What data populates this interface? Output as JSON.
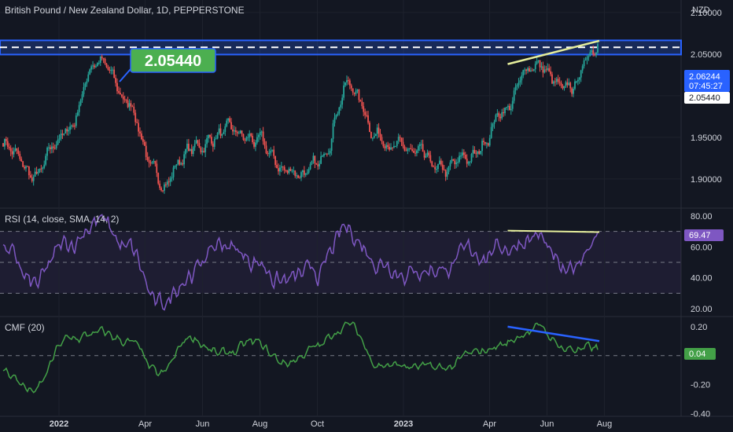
{
  "chart_title": "British Pound / New Zealand Dollar, 1D, PEPPERSTONE",
  "currency": "NZD",
  "colors": {
    "background": "#131722",
    "up": "#26a69a",
    "down": "#ef5350",
    "rsi": "#7e57c2",
    "cmf": "#43a047",
    "level_box": "#2962ff",
    "callout": "#4caf50",
    "trendline": "#e6ee9c"
  },
  "price_axis": {
    "ticks": [
      "2.10000",
      "2.05000",
      "2.00000",
      "1.95000",
      "1.90000"
    ],
    "last_price": "2.06244",
    "countdown": "07:45:27",
    "level_label": "2.05440"
  },
  "callout": {
    "value": "2.05440"
  },
  "time_axis": [
    "2022",
    "Apr",
    "Jun",
    "Aug",
    "Oct",
    "2023",
    "Apr",
    "Jun",
    "Aug"
  ],
  "rsi": {
    "title": "RSI (14, close, SMA, 14, 2)",
    "ticks": [
      "80.00",
      "60.00",
      "40.00",
      "20.00"
    ],
    "last_value": "69.47",
    "bands": [
      30,
      50,
      70
    ]
  },
  "cmf": {
    "title": "CMF (20)",
    "ticks": [
      "0.20",
      "0.00",
      "-0.20",
      "-0.40"
    ],
    "last_value": "0.04"
  },
  "chart_data": [
    {
      "type": "candlestick",
      "title": "British Pound / New Zealand Dollar, 1D, PEPPERSTONE",
      "ylabel": "NZD",
      "ylim": [
        1.865,
        2.115
      ],
      "x": [
        "2021-11",
        "2021-12",
        "2022-01",
        "2022-02",
        "2022-03",
        "2022-04",
        "2022-05",
        "2022-06",
        "2022-07",
        "2022-08",
        "2022-09",
        "2022-10",
        "2022-11",
        "2022-12",
        "2023-01",
        "2023-02",
        "2023-03",
        "2023-04",
        "2023-05",
        "2023-06"
      ],
      "close": [
        1.945,
        1.9,
        1.955,
        2.045,
        1.99,
        1.895,
        1.935,
        1.955,
        1.945,
        1.91,
        1.91,
        2.015,
        1.955,
        1.93,
        1.905,
        1.925,
        1.985,
        2.04,
        2.0,
        2.062
      ],
      "horizontal_level": 2.0544,
      "annotations": [
        "2.05440"
      ]
    },
    {
      "type": "line",
      "title": "RSI (14, close, SMA, 14, 2)",
      "ylim": [
        15,
        85
      ],
      "x": [
        "2021-11",
        "2021-12",
        "2022-01",
        "2022-02",
        "2022-03",
        "2022-04",
        "2022-05",
        "2022-06",
        "2022-07",
        "2022-08",
        "2022-09",
        "2022-10",
        "2022-11",
        "2022-12",
        "2023-01",
        "2023-02",
        "2023-03",
        "2023-04",
        "2023-05",
        "2023-06"
      ],
      "values": [
        58,
        34,
        60,
        78,
        58,
        20,
        45,
        62,
        52,
        38,
        42,
        70,
        52,
        45,
        47,
        55,
        60,
        68,
        40,
        69.47
      ]
    },
    {
      "type": "line",
      "title": "CMF (20)",
      "ylim": [
        -0.42,
        0.27
      ],
      "x": [
        "2021-11",
        "2021-12",
        "2022-01",
        "2022-02",
        "2022-03",
        "2022-04",
        "2022-05",
        "2022-06",
        "2022-07",
        "2022-08",
        "2022-09",
        "2022-10",
        "2022-11",
        "2022-12",
        "2023-01",
        "2023-02",
        "2023-03",
        "2023-04",
        "2023-05",
        "2023-06"
      ],
      "values": [
        -0.1,
        -0.25,
        0.1,
        0.15,
        0.1,
        -0.15,
        0.13,
        0.0,
        0.08,
        -0.05,
        0.05,
        0.22,
        -0.05,
        -0.08,
        -0.1,
        0.0,
        0.08,
        0.2,
        0.05,
        0.04
      ]
    }
  ]
}
